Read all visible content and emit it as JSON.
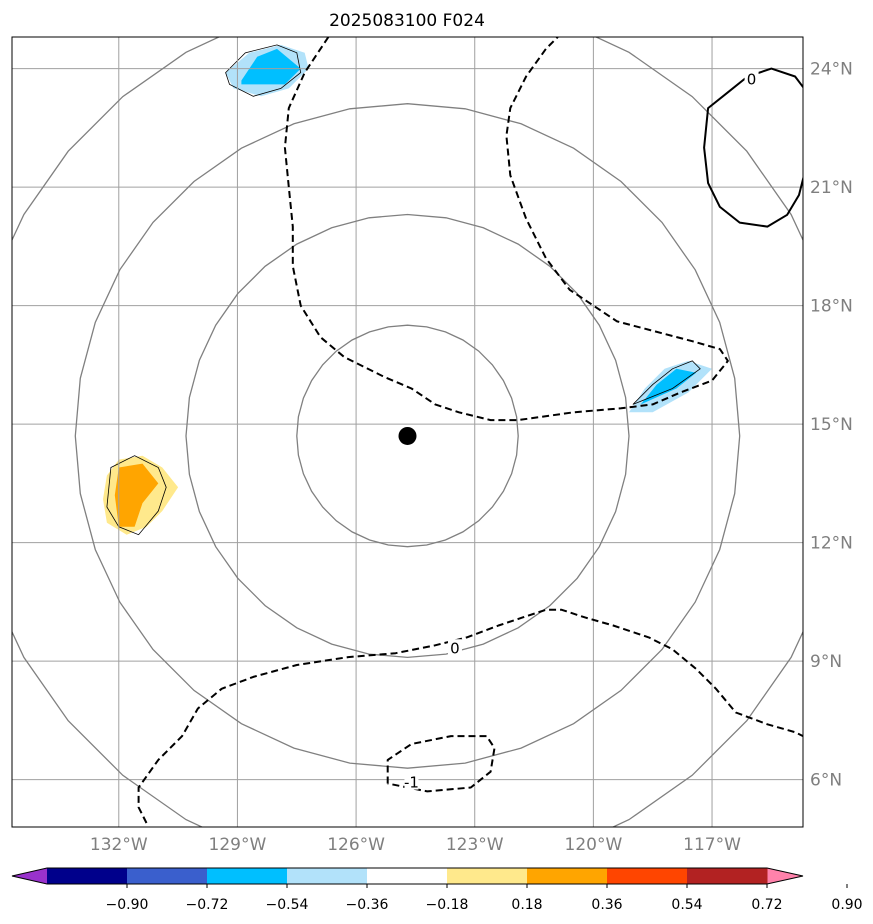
{
  "chart_data": {
    "type": "map-contour",
    "title": "2025083100 F024",
    "xlim": [
      -134.7,
      -114.7
    ],
    "ylim": [
      4.8,
      24.8
    ],
    "lon_ticks": [
      {
        "value": -132,
        "label": "132°W"
      },
      {
        "value": -129,
        "label": "129°W"
      },
      {
        "value": -126,
        "label": "126°W"
      },
      {
        "value": -123,
        "label": "123°W"
      },
      {
        "value": -120,
        "label": "120°W"
      },
      {
        "value": -117,
        "label": "117°W"
      }
    ],
    "lat_ticks": [
      {
        "value": 24,
        "label": "24°N"
      },
      {
        "value": 21,
        "label": "21°N"
      },
      {
        "value": 18,
        "label": "18°N"
      },
      {
        "value": 15,
        "label": "15°N"
      },
      {
        "value": 12,
        "label": "12°N"
      },
      {
        "value": 9,
        "label": "9°N"
      },
      {
        "value": 6,
        "label": "6°N"
      }
    ],
    "grid": true,
    "center": {
      "lon": -124.7,
      "lat": 14.7
    },
    "range_rings_deg": [
      2.8,
      5.6,
      8.4,
      11.2
    ],
    "colorbar": {
      "extend": "both",
      "levels": [
        -0.9,
        -0.72,
        -0.54,
        -0.36,
        -0.18,
        0.18,
        0.36,
        0.54,
        0.72,
        0.9
      ],
      "tick_labels": [
        "−0.90",
        "−0.72",
        "−0.54",
        "−0.36",
        "−0.18",
        "0.18",
        "0.36",
        "0.54",
        "0.72",
        "0.90"
      ],
      "colors": [
        "#9932cc",
        "#00008b",
        "#3a5fcd",
        "#00bfff",
        "#b2e2fa",
        "#ffffff",
        "#ffe98c",
        "#ffa500",
        "#ff4500",
        "#b22222",
        "#ff82ab"
      ]
    },
    "contour_labels": [
      {
        "text": "0",
        "lon": -123.5,
        "lat": 9.3
      },
      {
        "text": "-1",
        "lon": -124.6,
        "lat": 5.9
      },
      {
        "text": "0",
        "lon": -116.0,
        "lat": 23.7
      }
    ],
    "contours": [
      {
        "style": "dashed",
        "points": [
          [
            -126.7,
            24.8
          ],
          [
            -127.3,
            23.9
          ],
          [
            -127.7,
            23.0
          ],
          [
            -127.8,
            22.0
          ],
          [
            -127.7,
            21.0
          ],
          [
            -127.6,
            20.0
          ],
          [
            -127.6,
            19.0
          ],
          [
            -127.4,
            18.0
          ],
          [
            -126.9,
            17.2
          ],
          [
            -126.3,
            16.7
          ],
          [
            -125.3,
            16.2
          ],
          [
            -124.6,
            15.9
          ],
          [
            -124.0,
            15.5
          ],
          [
            -123.4,
            15.3
          ],
          [
            -122.6,
            15.1
          ],
          [
            -121.9,
            15.1
          ],
          [
            -120.5,
            15.3
          ],
          [
            -119.3,
            15.4
          ],
          [
            -118.5,
            15.5
          ],
          [
            -117.8,
            15.8
          ],
          [
            -117.0,
            16.1
          ],
          [
            -116.6,
            16.6
          ],
          [
            -116.8,
            16.9
          ],
          [
            -117.5,
            17.1
          ],
          [
            -119.4,
            17.6
          ],
          [
            -120.6,
            18.4
          ],
          [
            -121.2,
            19.2
          ],
          [
            -121.7,
            20.2
          ],
          [
            -122.1,
            21.3
          ],
          [
            -122.2,
            22.3
          ],
          [
            -122.1,
            23.0
          ],
          [
            -121.7,
            23.8
          ],
          [
            -121.2,
            24.5
          ],
          [
            -120.9,
            24.8
          ]
        ]
      },
      {
        "style": "dashed",
        "points": [
          [
            -131.3,
            4.9
          ],
          [
            -131.5,
            5.3
          ],
          [
            -131.5,
            5.8
          ],
          [
            -131.0,
            6.5
          ],
          [
            -130.4,
            7.1
          ],
          [
            -130.0,
            7.8
          ],
          [
            -129.4,
            8.3
          ],
          [
            -128.6,
            8.6
          ],
          [
            -127.5,
            8.9
          ],
          [
            -126.2,
            9.1
          ],
          [
            -125.0,
            9.2
          ],
          [
            -124.0,
            9.4
          ],
          [
            -123.2,
            9.6
          ],
          [
            -122.4,
            9.9
          ],
          [
            -121.8,
            10.1
          ],
          [
            -121.2,
            10.3
          ],
          [
            -120.8,
            10.3
          ],
          [
            -120.2,
            10.1
          ],
          [
            -119.5,
            9.9
          ],
          [
            -118.6,
            9.6
          ],
          [
            -118.0,
            9.3
          ],
          [
            -117.4,
            8.8
          ],
          [
            -116.9,
            8.3
          ],
          [
            -116.4,
            7.7
          ],
          [
            -115.6,
            7.4
          ],
          [
            -114.9,
            7.2
          ],
          [
            -114.7,
            7.1
          ]
        ]
      },
      {
        "style": "dashed",
        "points": [
          [
            -125.2,
            5.9
          ],
          [
            -125.2,
            6.5
          ],
          [
            -124.6,
            6.9
          ],
          [
            -123.6,
            7.1
          ],
          [
            -122.7,
            7.1
          ],
          [
            -122.5,
            6.8
          ],
          [
            -122.6,
            6.2
          ],
          [
            -123.1,
            5.8
          ],
          [
            -124.2,
            5.7
          ],
          [
            -125.2,
            5.9
          ]
        ]
      },
      {
        "style": "solid",
        "points": [
          [
            -116.1,
            23.8
          ],
          [
            -115.5,
            24.0
          ],
          [
            -114.9,
            23.8
          ],
          [
            -114.6,
            23.4
          ],
          [
            -114.4,
            22.9
          ],
          [
            -114.4,
            22.3
          ],
          [
            -114.6,
            21.6
          ],
          [
            -114.8,
            20.8
          ],
          [
            -115.1,
            20.3
          ],
          [
            -115.6,
            20.0
          ],
          [
            -116.3,
            20.1
          ],
          [
            -116.8,
            20.5
          ],
          [
            -117.1,
            21.1
          ],
          [
            -117.2,
            22.0
          ],
          [
            -117.1,
            23.0
          ],
          [
            -116.6,
            23.4
          ],
          [
            -116.1,
            23.8
          ]
        ]
      }
    ],
    "filled_regions": [
      {
        "level": -0.18,
        "color": "#b2e2fa",
        "points": [
          [
            -129.3,
            23.9
          ],
          [
            -128.7,
            24.4
          ],
          [
            -127.9,
            24.6
          ],
          [
            -127.3,
            24.4
          ],
          [
            -127.2,
            24.0
          ],
          [
            -127.7,
            23.5
          ],
          [
            -128.4,
            23.3
          ],
          [
            -129.1,
            23.5
          ],
          [
            -129.3,
            23.9
          ]
        ]
      },
      {
        "level": -0.36,
        "color": "#00bfff",
        "points": [
          [
            -128.9,
            23.7
          ],
          [
            -128.5,
            24.3
          ],
          [
            -128.0,
            24.5
          ],
          [
            -127.4,
            24.0
          ],
          [
            -127.8,
            23.6
          ],
          [
            -128.9,
            23.6
          ],
          [
            -128.9,
            23.7
          ]
        ]
      },
      {
        "level": -0.18,
        "color": "#b2e2fa",
        "points": [
          [
            -119.1,
            15.3
          ],
          [
            -118.7,
            15.9
          ],
          [
            -118.2,
            16.4
          ],
          [
            -117.6,
            16.6
          ],
          [
            -117.0,
            16.4
          ],
          [
            -117.6,
            15.8
          ],
          [
            -118.5,
            15.3
          ],
          [
            -119.1,
            15.3
          ]
        ]
      },
      {
        "level": -0.36,
        "color": "#00bfff",
        "points": [
          [
            -118.8,
            15.5
          ],
          [
            -118.4,
            16.0
          ],
          [
            -117.9,
            16.4
          ],
          [
            -117.4,
            16.3
          ],
          [
            -117.9,
            15.9
          ],
          [
            -118.8,
            15.5
          ]
        ]
      },
      {
        "level": 0.18,
        "color": "#ffe98c",
        "points": [
          [
            -132.3,
            13.7
          ],
          [
            -132.0,
            14.1
          ],
          [
            -131.4,
            14.2
          ],
          [
            -130.9,
            13.9
          ],
          [
            -130.5,
            13.4
          ],
          [
            -130.9,
            12.8
          ],
          [
            -131.3,
            12.4
          ],
          [
            -131.8,
            12.2
          ],
          [
            -132.3,
            12.5
          ],
          [
            -132.4,
            13.1
          ],
          [
            -132.3,
            13.7
          ]
        ]
      },
      {
        "level": 0.36,
        "color": "#ffa500",
        "points": [
          [
            -132.0,
            13.9
          ],
          [
            -131.4,
            14.0
          ],
          [
            -131.0,
            13.5
          ],
          [
            -131.4,
            13.0
          ],
          [
            -131.6,
            12.4
          ],
          [
            -132.0,
            12.4
          ],
          [
            -132.1,
            13.2
          ],
          [
            -132.0,
            13.9
          ]
        ]
      }
    ],
    "region_outlines": [
      [
        [
          -129.3,
          23.9
        ],
        [
          -128.8,
          24.4
        ],
        [
          -128.0,
          24.6
        ],
        [
          -127.5,
          24.4
        ],
        [
          -127.4,
          23.9
        ],
        [
          -127.9,
          23.5
        ],
        [
          -128.6,
          23.3
        ],
        [
          -129.2,
          23.6
        ],
        [
          -129.3,
          23.9
        ]
      ],
      [
        [
          -119.0,
          15.5
        ],
        [
          -118.5,
          16.0
        ],
        [
          -118.0,
          16.4
        ],
        [
          -117.5,
          16.6
        ],
        [
          -117.3,
          16.4
        ],
        [
          -118.0,
          15.9
        ],
        [
          -119.0,
          15.5
        ]
      ],
      [
        [
          -132.2,
          13.9
        ],
        [
          -131.6,
          14.2
        ],
        [
          -131.0,
          13.9
        ],
        [
          -130.8,
          13.4
        ],
        [
          -131.0,
          12.8
        ],
        [
          -131.5,
          12.2
        ],
        [
          -132.0,
          12.4
        ],
        [
          -132.3,
          12.9
        ],
        [
          -132.2,
          13.9
        ]
      ]
    ]
  }
}
